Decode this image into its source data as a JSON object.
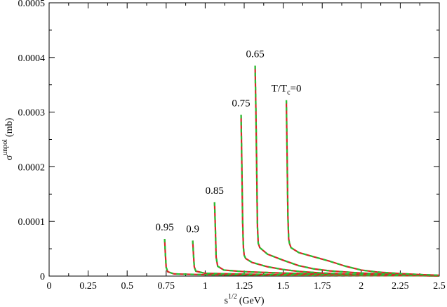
{
  "chart_data": {
    "type": "line",
    "xlabel": {
      "base": "s",
      "sup": "1/2",
      "unit": "(GeV)"
    },
    "ylabel": {
      "base": "σ",
      "sup": "unpol",
      "unit": "(mb)"
    },
    "xlim": [
      0,
      2.5
    ],
    "ylim": [
      0,
      0.0005
    ],
    "x_ticks": [
      "0",
      "0.25",
      "0.5",
      "0.75",
      "1",
      "1.25",
      "1.5",
      "1.75",
      "2",
      "2.25",
      "2.5"
    ],
    "y_ticks": [
      "0",
      "0.0001",
      "0.0002",
      "0.0003",
      "0.0004",
      "0.0005"
    ],
    "grid": false,
    "colors": {
      "primary": "#d62828",
      "dashed": "#22c232"
    },
    "series": [
      {
        "label": "0.95",
        "points": [
          [
            0.74,
            6.8e-05
          ],
          [
            0.745,
            4e-05
          ],
          [
            0.75,
            1.6e-05
          ],
          [
            0.76,
            8e-06
          ],
          [
            0.8,
            4e-06
          ],
          [
            1.0,
            2.5e-06
          ],
          [
            1.5,
            1.5e-06
          ],
          [
            2.0,
            1e-06
          ],
          [
            2.5,
            6e-07
          ]
        ]
      },
      {
        "label": "0.9",
        "points": [
          [
            0.92,
            6.5e-05
          ],
          [
            0.925,
            4e-05
          ],
          [
            0.93,
            1.7e-05
          ],
          [
            0.94,
            9e-06
          ],
          [
            1.0,
            5e-06
          ],
          [
            1.25,
            3.5e-06
          ],
          [
            1.5,
            2.5e-06
          ],
          [
            2.0,
            1.5e-06
          ],
          [
            2.5,
            1e-06
          ]
        ]
      },
      {
        "label": "0.85",
        "points": [
          [
            1.06,
            0.000135
          ],
          [
            1.065,
            9e-05
          ],
          [
            1.07,
            3.5e-05
          ],
          [
            1.08,
            1.8e-05
          ],
          [
            1.12,
            1.1e-05
          ],
          [
            1.25,
            8e-06
          ],
          [
            1.5,
            5.5e-06
          ],
          [
            1.75,
            3.5e-06
          ],
          [
            2.0,
            2.2e-06
          ],
          [
            2.25,
            1.2e-06
          ],
          [
            2.5,
            5e-07
          ]
        ]
      },
      {
        "label": "0.75",
        "points": [
          [
            1.23,
            0.000295
          ],
          [
            1.235,
            0.0002
          ],
          [
            1.24,
            0.0001
          ],
          [
            1.245,
            5.2e-05
          ],
          [
            1.25,
            3.8e-05
          ],
          [
            1.26,
            3.2e-05
          ],
          [
            1.3,
            2.5e-05
          ],
          [
            1.4,
            1.7e-05
          ],
          [
            1.5,
            1.2e-05
          ],
          [
            1.6,
            8.5e-06
          ],
          [
            1.75,
            5.5e-06
          ],
          [
            2.0,
            2.8e-06
          ],
          [
            2.25,
            1.2e-06
          ],
          [
            2.5,
            5e-07
          ]
        ]
      },
      {
        "label": "0.65",
        "points": [
          [
            1.32,
            0.000385
          ],
          [
            1.325,
            0.0003
          ],
          [
            1.33,
            0.0002
          ],
          [
            1.335,
            9e-05
          ],
          [
            1.34,
            6e-05
          ],
          [
            1.35,
            5.2e-05
          ],
          [
            1.4,
            4e-05
          ],
          [
            1.5,
            2.9e-05
          ],
          [
            1.6,
            1.9e-05
          ],
          [
            1.7,
            1.3e-05
          ],
          [
            1.8,
            9.5e-06
          ],
          [
            2.0,
            5.5e-06
          ],
          [
            2.25,
            2.5e-06
          ],
          [
            2.5,
            7e-07
          ]
        ]
      },
      {
        "label": "T/Tc=0",
        "label_parts": {
          "main": "T/T",
          "sub": "c",
          "tail": "=0"
        },
        "points": [
          [
            1.52,
            0.000322
          ],
          [
            1.525,
            0.00022
          ],
          [
            1.53,
            0.00011
          ],
          [
            1.535,
            6.8e-05
          ],
          [
            1.54,
            6e-05
          ],
          [
            1.55,
            5.2e-05
          ],
          [
            1.6,
            4.3e-05
          ],
          [
            1.7,
            3.5e-05
          ],
          [
            1.8,
            2.7e-05
          ],
          [
            1.9,
            1.8e-05
          ],
          [
            2.0,
            1.1e-05
          ],
          [
            2.1,
            7.5e-06
          ],
          [
            2.25,
            4.5e-06
          ],
          [
            2.4,
            2.5e-06
          ],
          [
            2.5,
            1.5e-06
          ]
        ]
      }
    ]
  }
}
